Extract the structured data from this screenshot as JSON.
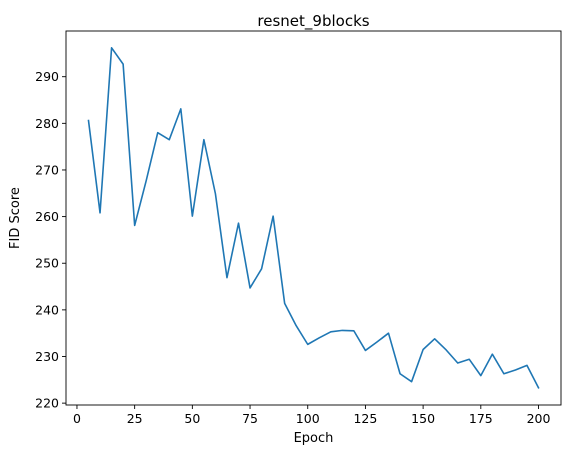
{
  "chart_data": {
    "type": "line",
    "title": "resnet_9blocks",
    "xlabel": "Epoch",
    "ylabel": "FID Score",
    "xlim": [
      -4.75,
      209.75
    ],
    "ylim": [
      219.6,
      299.8
    ],
    "xticks": [
      0,
      25,
      50,
      75,
      100,
      125,
      150,
      175,
      200
    ],
    "yticks": [
      220,
      230,
      240,
      250,
      260,
      270,
      280,
      290
    ],
    "grid": false,
    "line_color": "#1f77b4",
    "series": [
      {
        "x": [
          5,
          10,
          15,
          20,
          25,
          30,
          35,
          40,
          45,
          50,
          55,
          60,
          65,
          70,
          75,
          80,
          85,
          90,
          95,
          100,
          105,
          110,
          115,
          120,
          125,
          130,
          135,
          140,
          145,
          150,
          155,
          160,
          165,
          170,
          175,
          180,
          185,
          190,
          195,
          200
        ],
        "values": [
          280.6,
          260.8,
          296.2,
          292.7,
          258.1,
          267.7,
          278.0,
          276.5,
          283.1,
          260.1,
          276.5,
          264.9,
          246.9,
          258.6,
          244.7,
          248.8,
          260.1,
          241.4,
          236.6,
          232.6,
          234.0,
          235.3,
          235.6,
          235.5,
          231.3,
          233.1,
          235.0,
          226.3,
          224.6,
          231.5,
          233.8,
          231.4,
          228.6,
          229.4,
          225.9,
          230.5,
          226.3,
          227.1,
          228.1,
          223.3
        ]
      }
    ]
  }
}
